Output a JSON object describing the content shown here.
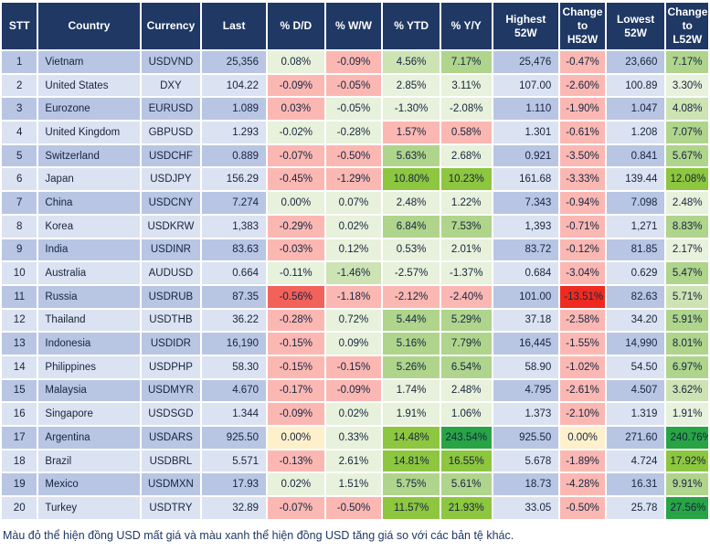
{
  "palette": {
    "header-bg": "#1F3864",
    "header-text": "#FFFFFF",
    "band-odd": "#B8C6E4",
    "band-even": "#DBE2F1",
    "g0": "#E7F1DB",
    "g1": "#CDE3B4",
    "g2": "#AFD48C",
    "g3": "#8DC63F",
    "g4": "#28A445",
    "r0": "#FBB8B3",
    "r1": "#F2625B",
    "r2": "#EE2B21",
    "y": "#FDF0CB",
    "text": "#16243F",
    "note-text": "#1F3864",
    "grid": "#FFFFFF"
  },
  "table": {
    "columns": [
      {
        "id": "stt",
        "label": "STT"
      },
      {
        "id": "country",
        "label": "Country"
      },
      {
        "id": "currency",
        "label": "Currency"
      },
      {
        "id": "last",
        "label": "Last"
      },
      {
        "id": "dd",
        "label": "% D/D"
      },
      {
        "id": "ww",
        "label": "% W/W"
      },
      {
        "id": "ytd",
        "label": "% YTD"
      },
      {
        "id": "yy",
        "label": "% Y/Y"
      },
      {
        "id": "highest-52w",
        "label": "Highest\n52W"
      },
      {
        "id": "change-to-h52w",
        "label": "Change\nto\nH52W"
      },
      {
        "id": "lowest-52w",
        "label": "Lowest\n52W"
      },
      {
        "id": "change-to-l52w",
        "label": "Change\nto\nL52W"
      }
    ],
    "rows": [
      {
        "cells": [
          {
            "v": "1"
          },
          {
            "v": "Vietnam"
          },
          {
            "v": "USDVND"
          },
          {
            "v": "25,356"
          },
          {
            "v": "0.08%",
            "k": "g0"
          },
          {
            "v": "-0.09%",
            "k": "r0"
          },
          {
            "v": "4.56%",
            "k": "g1"
          },
          {
            "v": "7.17%",
            "k": "g2"
          },
          {
            "v": "25,476"
          },
          {
            "v": "-0.47%",
            "k": "r0"
          },
          {
            "v": "23,660"
          },
          {
            "v": "7.17%",
            "k": "g2"
          }
        ]
      },
      {
        "cells": [
          {
            "v": "2"
          },
          {
            "v": "United States"
          },
          {
            "v": "DXY"
          },
          {
            "v": "104.22"
          },
          {
            "v": "-0.09%",
            "k": "r0"
          },
          {
            "v": "-0.05%",
            "k": "r0"
          },
          {
            "v": "2.85%",
            "k": "g0"
          },
          {
            "v": "3.11%",
            "k": "g0"
          },
          {
            "v": "107.00"
          },
          {
            "v": "-2.60%",
            "k": "r0"
          },
          {
            "v": "100.89"
          },
          {
            "v": "3.30%",
            "k": "g0"
          }
        ]
      },
      {
        "cells": [
          {
            "v": "3"
          },
          {
            "v": "Eurozone"
          },
          {
            "v": "EURUSD"
          },
          {
            "v": "1.089"
          },
          {
            "v": "0.03%",
            "k": "r0"
          },
          {
            "v": "-0.05%",
            "k": "g0"
          },
          {
            "v": "-1.30%",
            "k": "g0"
          },
          {
            "v": "-2.08%",
            "k": "g0"
          },
          {
            "v": "1.110"
          },
          {
            "v": "-1.90%",
            "k": "r0"
          },
          {
            "v": "1.047"
          },
          {
            "v": "4.08%",
            "k": "g1"
          }
        ]
      },
      {
        "cells": [
          {
            "v": "4"
          },
          {
            "v": "United Kingdom"
          },
          {
            "v": "GBPUSD"
          },
          {
            "v": "1.293"
          },
          {
            "v": "-0.02%",
            "k": "g0"
          },
          {
            "v": "-0.28%",
            "k": "g0"
          },
          {
            "v": "1.57%",
            "k": "r0"
          },
          {
            "v": "0.58%",
            "k": "r0"
          },
          {
            "v": "1.301"
          },
          {
            "v": "-0.61%",
            "k": "r0"
          },
          {
            "v": "1.208"
          },
          {
            "v": "7.07%",
            "k": "g2"
          }
        ]
      },
      {
        "cells": [
          {
            "v": "5"
          },
          {
            "v": "Switzerland"
          },
          {
            "v": "USDCHF"
          },
          {
            "v": "0.889"
          },
          {
            "v": "-0.07%",
            "k": "r0"
          },
          {
            "v": "-0.50%",
            "k": "r0"
          },
          {
            "v": "5.63%",
            "k": "g2"
          },
          {
            "v": "2.68%",
            "k": "g0"
          },
          {
            "v": "0.921"
          },
          {
            "v": "-3.50%",
            "k": "r0"
          },
          {
            "v": "0.841"
          },
          {
            "v": "5.67%",
            "k": "g2"
          }
        ]
      },
      {
        "cells": [
          {
            "v": "6"
          },
          {
            "v": "Japan"
          },
          {
            "v": "USDJPY"
          },
          {
            "v": "156.29"
          },
          {
            "v": "-0.45%",
            "k": "r0"
          },
          {
            "v": "-1.29%",
            "k": "r0"
          },
          {
            "v": "10.80%",
            "k": "g3"
          },
          {
            "v": "10.23%",
            "k": "g3"
          },
          {
            "v": "161.68"
          },
          {
            "v": "-3.33%",
            "k": "r0"
          },
          {
            "v": "139.44"
          },
          {
            "v": "12.08%",
            "k": "g3"
          }
        ]
      },
      {
        "cells": [
          {
            "v": "7"
          },
          {
            "v": "China"
          },
          {
            "v": "USDCNY"
          },
          {
            "v": "7.274"
          },
          {
            "v": "0.00%",
            "k": "g0"
          },
          {
            "v": "0.07%",
            "k": "g0"
          },
          {
            "v": "2.48%",
            "k": "g0"
          },
          {
            "v": "1.22%",
            "k": "g0"
          },
          {
            "v": "7.343"
          },
          {
            "v": "-0.94%",
            "k": "r0"
          },
          {
            "v": "7.098"
          },
          {
            "v": "2.48%",
            "k": "g0"
          }
        ]
      },
      {
        "cells": [
          {
            "v": "8"
          },
          {
            "v": "Korea"
          },
          {
            "v": "USDKRW"
          },
          {
            "v": "1,383"
          },
          {
            "v": "-0.29%",
            "k": "r0"
          },
          {
            "v": "0.02%",
            "k": "g0"
          },
          {
            "v": "6.84%",
            "k": "g2"
          },
          {
            "v": "7.53%",
            "k": "g2"
          },
          {
            "v": "1,393"
          },
          {
            "v": "-0.71%",
            "k": "r0"
          },
          {
            "v": "1,271"
          },
          {
            "v": "8.83%",
            "k": "g2"
          }
        ]
      },
      {
        "cells": [
          {
            "v": "9"
          },
          {
            "v": "India"
          },
          {
            "v": "USDINR"
          },
          {
            "v": "83.63"
          },
          {
            "v": "-0.03%",
            "k": "r0"
          },
          {
            "v": "0.12%",
            "k": "g0"
          },
          {
            "v": "0.53%",
            "k": "g0"
          },
          {
            "v": "2.01%",
            "k": "g0"
          },
          {
            "v": "83.72"
          },
          {
            "v": "-0.12%",
            "k": "r0"
          },
          {
            "v": "81.85"
          },
          {
            "v": "2.17%",
            "k": "g0"
          }
        ]
      },
      {
        "cells": [
          {
            "v": "10"
          },
          {
            "v": "Australia"
          },
          {
            "v": "AUDUSD"
          },
          {
            "v": "0.664"
          },
          {
            "v": "-0.11%",
            "k": "g0"
          },
          {
            "v": "-1.46%",
            "k": "g1"
          },
          {
            "v": "-2.57%",
            "k": "g0"
          },
          {
            "v": "-1.37%",
            "k": "g0"
          },
          {
            "v": "0.684"
          },
          {
            "v": "-3.04%",
            "k": "r0"
          },
          {
            "v": "0.629"
          },
          {
            "v": "5.47%",
            "k": "g2"
          }
        ]
      },
      {
        "cells": [
          {
            "v": "11"
          },
          {
            "v": "Russia"
          },
          {
            "v": "USDRUB"
          },
          {
            "v": "87.35"
          },
          {
            "v": "-0.56%",
            "k": "r1"
          },
          {
            "v": "-1.18%",
            "k": "r0"
          },
          {
            "v": "-2.12%",
            "k": "r0"
          },
          {
            "v": "-2.40%",
            "k": "r0"
          },
          {
            "v": "101.00"
          },
          {
            "v": "-13.51%",
            "k": "r2"
          },
          {
            "v": "82.63"
          },
          {
            "v": "5.71%",
            "k": "g1"
          }
        ]
      },
      {
        "cells": [
          {
            "v": "12"
          },
          {
            "v": "Thailand"
          },
          {
            "v": "USDTHB"
          },
          {
            "v": "36.22"
          },
          {
            "v": "-0.28%",
            "k": "r0"
          },
          {
            "v": "0.72%",
            "k": "g0"
          },
          {
            "v": "5.44%",
            "k": "g2"
          },
          {
            "v": "5.29%",
            "k": "g2"
          },
          {
            "v": "37.18"
          },
          {
            "v": "-2.58%",
            "k": "r0"
          },
          {
            "v": "34.20"
          },
          {
            "v": "5.91%",
            "k": "g2"
          }
        ]
      },
      {
        "cells": [
          {
            "v": "13"
          },
          {
            "v": "Indonesia"
          },
          {
            "v": "USDIDR"
          },
          {
            "v": "16,190"
          },
          {
            "v": "-0.15%",
            "k": "r0"
          },
          {
            "v": "0.09%",
            "k": "g0"
          },
          {
            "v": "5.16%",
            "k": "g2"
          },
          {
            "v": "7.79%",
            "k": "g2"
          },
          {
            "v": "16,445"
          },
          {
            "v": "-1.55%",
            "k": "r0"
          },
          {
            "v": "14,990"
          },
          {
            "v": "8.01%",
            "k": "g2"
          }
        ]
      },
      {
        "cells": [
          {
            "v": "14"
          },
          {
            "v": "Philippines"
          },
          {
            "v": "USDPHP"
          },
          {
            "v": "58.30"
          },
          {
            "v": "-0.15%",
            "k": "r0"
          },
          {
            "v": "-0.15%",
            "k": "r0"
          },
          {
            "v": "5.26%",
            "k": "g2"
          },
          {
            "v": "6.54%",
            "k": "g2"
          },
          {
            "v": "58.90"
          },
          {
            "v": "-1.02%",
            "k": "r0"
          },
          {
            "v": "54.50"
          },
          {
            "v": "6.97%",
            "k": "g2"
          }
        ]
      },
      {
        "cells": [
          {
            "v": "15"
          },
          {
            "v": "Malaysia"
          },
          {
            "v": "USDMYR"
          },
          {
            "v": "4.670"
          },
          {
            "v": "-0.17%",
            "k": "r0"
          },
          {
            "v": "-0.09%",
            "k": "r0"
          },
          {
            "v": "1.74%",
            "k": "g0"
          },
          {
            "v": "2.48%",
            "k": "g0"
          },
          {
            "v": "4.795"
          },
          {
            "v": "-2.61%",
            "k": "r0"
          },
          {
            "v": "4.507"
          },
          {
            "v": "3.62%",
            "k": "g1"
          }
        ]
      },
      {
        "cells": [
          {
            "v": "16"
          },
          {
            "v": "Singapore"
          },
          {
            "v": "USDSGD"
          },
          {
            "v": "1.344"
          },
          {
            "v": "-0.09%",
            "k": "r0"
          },
          {
            "v": "0.02%",
            "k": "g0"
          },
          {
            "v": "1.91%",
            "k": "g0"
          },
          {
            "v": "1.06%",
            "k": "g0"
          },
          {
            "v": "1.373"
          },
          {
            "v": "-2.10%",
            "k": "r0"
          },
          {
            "v": "1.319"
          },
          {
            "v": "1.91%",
            "k": "g0"
          }
        ]
      },
      {
        "cells": [
          {
            "v": "17"
          },
          {
            "v": "Argentina"
          },
          {
            "v": "USDARS"
          },
          {
            "v": "925.50"
          },
          {
            "v": "0.00%",
            "k": "y"
          },
          {
            "v": "0.33%",
            "k": "g0"
          },
          {
            "v": "14.48%",
            "k": "g3"
          },
          {
            "v": "243.54%",
            "k": "g4"
          },
          {
            "v": "925.50"
          },
          {
            "v": "0.00%",
            "k": "y"
          },
          {
            "v": "271.60"
          },
          {
            "v": "240.76%",
            "k": "g4"
          }
        ]
      },
      {
        "cells": [
          {
            "v": "18"
          },
          {
            "v": "Brazil"
          },
          {
            "v": "USDBRL"
          },
          {
            "v": "5.571"
          },
          {
            "v": "-0.13%",
            "k": "r0"
          },
          {
            "v": "2.61%",
            "k": "g0"
          },
          {
            "v": "14.81%",
            "k": "g3"
          },
          {
            "v": "16.55%",
            "k": "g3"
          },
          {
            "v": "5.678"
          },
          {
            "v": "-1.89%",
            "k": "r0"
          },
          {
            "v": "4.724"
          },
          {
            "v": "17.92%",
            "k": "g3"
          }
        ]
      },
      {
        "cells": [
          {
            "v": "19"
          },
          {
            "v": "Mexico"
          },
          {
            "v": "USDMXN"
          },
          {
            "v": "17.93"
          },
          {
            "v": "0.02%",
            "k": "g0"
          },
          {
            "v": "1.51%",
            "k": "g0"
          },
          {
            "v": "5.75%",
            "k": "g2"
          },
          {
            "v": "5.61%",
            "k": "g2"
          },
          {
            "v": "18.73"
          },
          {
            "v": "-4.28%",
            "k": "r0"
          },
          {
            "v": "16.31"
          },
          {
            "v": "9.91%",
            "k": "g2"
          }
        ]
      },
      {
        "cells": [
          {
            "v": "20"
          },
          {
            "v": "Turkey"
          },
          {
            "v": "USDTRY"
          },
          {
            "v": "32.89"
          },
          {
            "v": "-0.07%",
            "k": "r0"
          },
          {
            "v": "-0.50%",
            "k": "r0"
          },
          {
            "v": "11.57%",
            "k": "g3"
          },
          {
            "v": "21.93%",
            "k": "g3"
          },
          {
            "v": "33.05"
          },
          {
            "v": "-0.50%",
            "k": "r0"
          },
          {
            "v": "25.78"
          },
          {
            "v": "27.56%",
            "k": "g4"
          }
        ]
      }
    ]
  },
  "footnote": "Màu đỏ thể hiện đồng USD mất giá và màu xanh thể hiện đồng USD tăng giá so với các bản tệ khác."
}
